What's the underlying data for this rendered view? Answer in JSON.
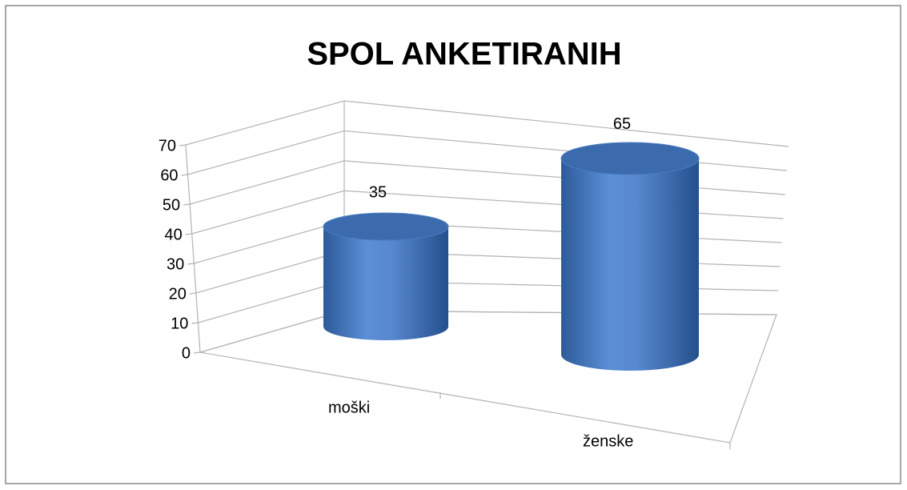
{
  "chart_data": {
    "type": "bar",
    "title": "SPOL ANKETIRANIH",
    "categories": [
      "moški",
      "ženske"
    ],
    "values": [
      35,
      65
    ],
    "color": "#4f81bd",
    "ylim": [
      0,
      70
    ],
    "yticks": [
      0,
      10,
      20,
      30,
      40,
      50,
      60,
      70
    ],
    "grid": true
  }
}
